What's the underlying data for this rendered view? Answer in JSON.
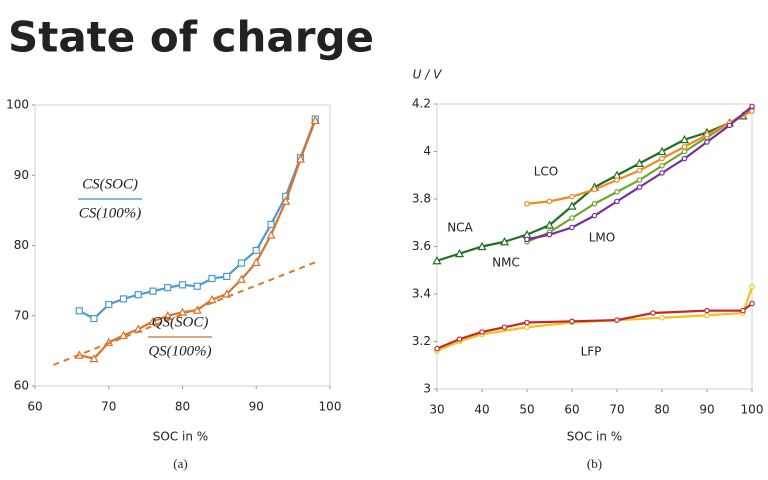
{
  "title": "State of charge",
  "chart_data": [
    {
      "type": "line",
      "xlabel": "SOC in %",
      "caption": "(a)",
      "xlim": [
        60,
        100
      ],
      "xticks": [
        60,
        70,
        80,
        90,
        100
      ],
      "ylim": [
        60,
        100
      ],
      "yticks": [
        60,
        70,
        80,
        90,
        100
      ],
      "annotations": [
        {
          "numerator": "CS(SOC)",
          "denominator": "CS(100%)",
          "color": "#3d8fc6"
        },
        {
          "numerator": "QS(SOC)",
          "denominator": "QS(100%)",
          "color": "#c8702e"
        }
      ],
      "series": [
        {
          "color": "#4a9ad4",
          "marker": "square",
          "x": [
            66,
            68,
            70,
            72,
            74,
            76,
            78,
            80,
            82,
            84,
            86,
            88,
            90,
            92,
            94,
            96,
            98
          ],
          "values": [
            70.7,
            69.6,
            71.6,
            72.4,
            73.0,
            73.5,
            74.0,
            74.4,
            74.2,
            75.3,
            75.6,
            77.5,
            79.3,
            83.0,
            87.0,
            92.5,
            98.0
          ]
        },
        {
          "color": "#d8742e",
          "marker": "triangle",
          "x": [
            66,
            68,
            70,
            72,
            74,
            76,
            78,
            80,
            82,
            84,
            86,
            88,
            90,
            92,
            94,
            96,
            98
          ],
          "values": [
            64.4,
            63.9,
            66.2,
            67.2,
            68.1,
            69.2,
            70.0,
            70.5,
            70.8,
            72.3,
            73.1,
            75.2,
            77.6,
            81.5,
            86.3,
            92.3,
            97.8
          ]
        },
        {
          "color": "#e07a22",
          "marker": "none",
          "dash": true,
          "x": [
            62.5,
            98
          ],
          "values": [
            63.0,
            77.6
          ]
        }
      ]
    },
    {
      "type": "line",
      "xlabel": "SOC in %",
      "ylabel": "U / V",
      "caption": "(b)",
      "xlim": [
        30,
        100
      ],
      "xticks": [
        30,
        40,
        50,
        60,
        70,
        80,
        90,
        100
      ],
      "ylim": [
        3,
        4.2
      ],
      "yticks": [
        3,
        3.2,
        3.4,
        3.6,
        3.8,
        4,
        4.2
      ],
      "series": [
        {
          "name": "NCA",
          "color": "#1f6e22",
          "marker": "triangle",
          "x": [
            30,
            35,
            40,
            45,
            50,
            55,
            60,
            65,
            70,
            75,
            80,
            85,
            90,
            95,
            98
          ],
          "values": [
            3.54,
            3.57,
            3.6,
            3.62,
            3.65,
            3.69,
            3.77,
            3.85,
            3.9,
            3.95,
            4.0,
            4.05,
            4.08,
            4.12,
            4.15
          ]
        },
        {
          "name": "NMC",
          "color": "#6aa82a",
          "marker": "circle",
          "x": [
            50,
            55,
            60,
            65,
            70,
            75,
            80,
            85,
            90,
            95,
            100
          ],
          "values": [
            3.62,
            3.66,
            3.72,
            3.78,
            3.83,
            3.88,
            3.94,
            4.0,
            4.06,
            4.12,
            4.18
          ]
        },
        {
          "name": "LCO",
          "color": "#ee8a22",
          "marker": "circle",
          "x": [
            50,
            55,
            60,
            65,
            70,
            75,
            80,
            85,
            90,
            95,
            100
          ],
          "values": [
            3.78,
            3.79,
            3.81,
            3.84,
            3.88,
            3.92,
            3.97,
            4.02,
            4.07,
            4.12,
            4.17
          ]
        },
        {
          "name": "LMO",
          "color": "#7b2c9c",
          "marker": "circle",
          "x": [
            50,
            55,
            60,
            65,
            70,
            75,
            80,
            85,
            90,
            95,
            100
          ],
          "values": [
            3.63,
            3.65,
            3.68,
            3.73,
            3.79,
            3.85,
            3.91,
            3.97,
            4.04,
            4.11,
            4.19
          ]
        },
        {
          "color": "#f2c21e",
          "marker": "circle",
          "x": [
            30,
            35,
            40,
            50,
            60,
            70,
            80,
            90,
            98,
            100
          ],
          "values": [
            3.16,
            3.2,
            3.23,
            3.26,
            3.28,
            3.29,
            3.3,
            3.31,
            3.32,
            3.43
          ]
        },
        {
          "name": "LFP",
          "color": "#c4262a",
          "marker": "circle",
          "x": [
            30,
            35,
            40,
            45,
            50,
            60,
            70,
            78,
            90,
            98,
            100
          ],
          "values": [
            3.17,
            3.21,
            3.24,
            3.26,
            3.28,
            3.285,
            3.29,
            3.32,
            3.33,
            3.33,
            3.36
          ]
        }
      ]
    }
  ]
}
